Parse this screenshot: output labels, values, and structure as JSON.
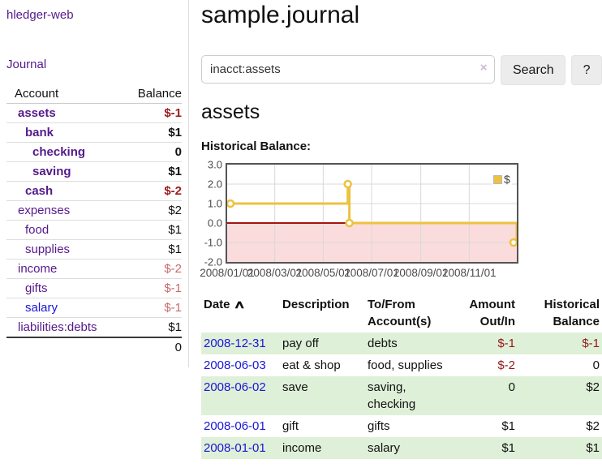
{
  "app": {
    "brand": "hledger-web",
    "nav_journal": "Journal"
  },
  "icons": {
    "sort_ascending": "∧",
    "clear_search": "×"
  },
  "colors": {
    "visited_link_purple": "#551a8b",
    "unvisited_link_blue": "#1a16d6",
    "negative_strong": "#9e1a1a",
    "negative_muted": "#c76b6b",
    "register_negative": "#941919",
    "row_highlight_green": "#dff0d8",
    "chart_series_yellow": "#edc240",
    "chart_negative_fill": "#fbdcdc",
    "chart_zero_line": "#a31414"
  },
  "sidebar": {
    "header": {
      "account": "Account",
      "balance": "Balance"
    },
    "rows": [
      {
        "account": "assets",
        "balance": "$-1",
        "depth": 1,
        "emphasized": true,
        "balance_style": "negative",
        "link_style": "visited"
      },
      {
        "account": "bank",
        "balance": "$1",
        "depth": 2,
        "emphasized": true,
        "balance_style": "positive",
        "link_style": "visited"
      },
      {
        "account": "checking",
        "balance": "0",
        "depth": 3,
        "emphasized": true,
        "balance_style": "positive",
        "link_style": "visited"
      },
      {
        "account": "saving",
        "balance": "$1",
        "depth": 3,
        "emphasized": true,
        "balance_style": "positive",
        "link_style": "visited"
      },
      {
        "account": "cash",
        "balance": "$-2",
        "depth": 2,
        "emphasized": true,
        "balance_style": "negative",
        "link_style": "visited"
      },
      {
        "account": "expenses",
        "balance": "$2",
        "depth": 1,
        "emphasized": false,
        "balance_style": "positive",
        "link_style": "visited"
      },
      {
        "account": "food",
        "balance": "$1",
        "depth": 2,
        "emphasized": false,
        "balance_style": "positive",
        "link_style": "visited"
      },
      {
        "account": "supplies",
        "balance": "$1",
        "depth": 2,
        "emphasized": false,
        "balance_style": "positive",
        "link_style": "visited"
      },
      {
        "account": "income",
        "balance": "$-2",
        "depth": 1,
        "emphasized": false,
        "balance_style": "negative-muted",
        "link_style": "visited"
      },
      {
        "account": "gifts",
        "balance": "$-1",
        "depth": 2,
        "emphasized": false,
        "balance_style": "negative-muted",
        "link_style": "visited"
      },
      {
        "account": "salary",
        "balance": "$-1",
        "depth": 2,
        "emphasized": false,
        "balance_style": "negative-muted",
        "link_style": "unvisited"
      },
      {
        "account": "liabilities:debts",
        "balance": "$1",
        "depth": 1,
        "emphasized": false,
        "balance_style": "positive",
        "link_style": "visited"
      }
    ],
    "total": "0"
  },
  "main": {
    "title": "sample.journal",
    "search": {
      "value": "inacct:assets",
      "button": "Search",
      "help": "?"
    },
    "heading": "assets",
    "chart_label": "Historical Balance:"
  },
  "chart_data": {
    "type": "line",
    "step": true,
    "title": "Historical Balance",
    "xlabel": "",
    "ylabel": "",
    "x_range": [
      "2008-01-01",
      "2008-12-31"
    ],
    "ylim": [
      -2,
      3
    ],
    "grid": true,
    "legend_position": "top-right",
    "series": [
      {
        "name": "$",
        "color": "#edc240",
        "points": [
          [
            "2008-01-01",
            1.0
          ],
          [
            "2008-06-01",
            2.0
          ],
          [
            "2008-06-03",
            0.0
          ],
          [
            "2008-12-31",
            -1.0
          ]
        ]
      }
    ],
    "x_ticks": [
      {
        "date": "2008-01-01",
        "label": "2008/01/01"
      },
      {
        "date": "2008-03-01",
        "label": "2008/03/01"
      },
      {
        "date": "2008-05-01",
        "label": "2008/05/01"
      },
      {
        "date": "2008-07-01",
        "label": "2008/07/01"
      },
      {
        "date": "2008-09-01",
        "label": "2008/09/01"
      },
      {
        "date": "2008-11-01",
        "label": "2008/11/01"
      }
    ],
    "y_ticks": [
      {
        "value": 3,
        "label": "3.0"
      },
      {
        "value": 2,
        "label": "2.0"
      },
      {
        "value": 1,
        "label": "1.0"
      },
      {
        "value": 0,
        "label": "0.0"
      },
      {
        "value": -1,
        "label": "-1.0"
      },
      {
        "value": -2,
        "label": "-2.0"
      }
    ]
  },
  "register": {
    "headers": [
      {
        "label": "Date",
        "sorted": true
      },
      {
        "label": "Description"
      },
      {
        "label": "To/From Account(s)"
      },
      {
        "label": "Amount Out/In"
      },
      {
        "label": "Historical Balance"
      }
    ],
    "rows": [
      {
        "date": "2008-12-31",
        "description": "pay off",
        "accounts": "debts",
        "amount": "$-1",
        "amount_negative": true,
        "balance": "$-1",
        "balance_negative": true,
        "highlighted": true
      },
      {
        "date": "2008-06-03",
        "description": "eat & shop",
        "accounts": "food, supplies",
        "amount": "$-2",
        "amount_negative": true,
        "balance": "0",
        "balance_negative": false,
        "highlighted": false
      },
      {
        "date": "2008-06-02",
        "description": "save",
        "accounts": "saving, checking",
        "amount": "0",
        "amount_negative": false,
        "balance": "$2",
        "balance_negative": false,
        "highlighted": true
      },
      {
        "date": "2008-06-01",
        "description": "gift",
        "accounts": "gifts",
        "amount": "$1",
        "amount_negative": false,
        "balance": "$2",
        "balance_negative": false,
        "highlighted": false
      },
      {
        "date": "2008-01-01",
        "description": "income",
        "accounts": "salary",
        "amount": "$1",
        "amount_negative": false,
        "balance": "$1",
        "balance_negative": false,
        "highlighted": true
      }
    ]
  }
}
